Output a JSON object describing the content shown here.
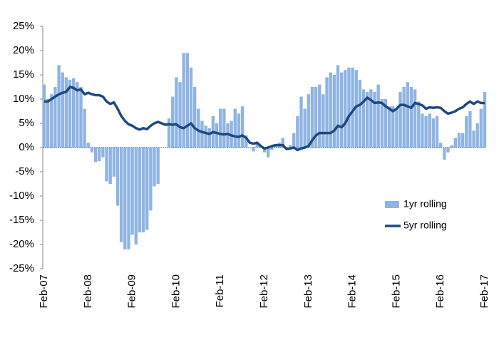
{
  "chart_data": {
    "type": "bar-line",
    "categories": [
      "Feb-07",
      null,
      null,
      null,
      null,
      null,
      null,
      null,
      null,
      null,
      null,
      null,
      "Feb-08",
      null,
      null,
      null,
      null,
      null,
      null,
      null,
      null,
      null,
      null,
      null,
      "Feb-09",
      null,
      null,
      null,
      null,
      null,
      null,
      null,
      null,
      null,
      null,
      null,
      "Feb-10",
      null,
      null,
      null,
      null,
      null,
      null,
      null,
      null,
      null,
      null,
      null,
      "Feb-11",
      null,
      null,
      null,
      null,
      null,
      null,
      null,
      null,
      null,
      null,
      null,
      "Feb-12",
      null,
      null,
      null,
      null,
      null,
      null,
      null,
      null,
      null,
      null,
      null,
      "Feb-13",
      null,
      null,
      null,
      null,
      null,
      null,
      null,
      null,
      null,
      null,
      null,
      "Feb-14",
      null,
      null,
      null,
      null,
      null,
      null,
      null,
      null,
      null,
      null,
      null,
      "Feb-15",
      null,
      null,
      null,
      null,
      null,
      null,
      null,
      null,
      null,
      null,
      null,
      "Feb-16",
      null,
      null,
      null,
      null,
      null,
      null,
      null,
      null,
      null,
      null,
      null,
      "Feb-17"
    ],
    "series": [
      {
        "name": "1yr rolling",
        "kind": "bar",
        "color": "#8fb4e3",
        "values": [
          13,
          10,
          11,
          12.5,
          17,
          15.5,
          14.5,
          14,
          14.3,
          13.5,
          12.5,
          8,
          1,
          -1,
          -3,
          -2.8,
          -2,
          -7,
          -7.5,
          -6,
          -12,
          -19.5,
          -21,
          -21,
          -18,
          -20,
          -17.5,
          -17.5,
          -17,
          -13,
          -8,
          -7.5,
          0,
          0,
          6,
          10.5,
          14.5,
          13.5,
          19.5,
          19.5,
          16.5,
          12.5,
          8,
          5.5,
          4.5,
          4,
          6.5,
          5,
          8,
          8,
          5,
          5.5,
          8,
          7,
          8.5,
          2.5,
          0,
          -0.8,
          1,
          0.5,
          -1,
          -2,
          -0.5,
          0.5,
          1,
          2,
          0,
          0.5,
          3,
          6.5,
          10.5,
          8,
          11,
          12.5,
          12.5,
          13,
          11,
          14.5,
          15.5,
          15,
          17,
          15.5,
          16,
          16.5,
          16.5,
          16,
          14,
          12,
          11.5,
          12,
          11.5,
          13,
          10,
          10,
          8.5,
          8.5,
          8,
          11.5,
          12.5,
          13.5,
          12.5,
          12,
          9.5,
          7,
          6.5,
          7,
          6,
          6.5,
          1,
          -2.5,
          -1,
          0.5,
          2,
          3,
          3,
          6.5,
          7.5,
          3.5,
          5,
          8,
          11.5
        ]
      },
      {
        "name": "5yr rolling",
        "kind": "line",
        "color": "#1f497d",
        "values": [
          9.5,
          9.5,
          10,
          10.5,
          11,
          11.3,
          11.5,
          12.5,
          12.3,
          11.8,
          12,
          11,
          11.3,
          11,
          10.8,
          10.8,
          10.5,
          9.5,
          9,
          9.3,
          8,
          6.5,
          5.5,
          4.8,
          4.5,
          4,
          3.7,
          4,
          3.8,
          4.5,
          5,
          5.3,
          5,
          4.7,
          4.8,
          4.7,
          4.8,
          4.2,
          4,
          4.5,
          5,
          4,
          3.5,
          3.2,
          3,
          2.8,
          3.2,
          3,
          2.8,
          2.7,
          2.8,
          2.5,
          2.3,
          2.2,
          2.5,
          2,
          1,
          0.8,
          1,
          0.3,
          -0.2,
          0,
          0.3,
          0.5,
          0.5,
          0.5,
          -0.3,
          -0.2,
          0,
          -0.5,
          -0.2,
          0,
          0.3,
          1.5,
          2.5,
          3,
          3,
          3,
          3,
          3.5,
          4.5,
          4.2,
          5,
          6.5,
          7.5,
          8.5,
          8.8,
          9.5,
          10.3,
          9.8,
          9.2,
          9.3,
          9.2,
          8.5,
          8,
          7.5,
          8,
          8.8,
          8.8,
          8.5,
          8.2,
          9.2,
          9,
          8.7,
          8,
          8.3,
          8.2,
          8.3,
          8.2,
          7.5,
          7,
          7.2,
          7.5,
          8,
          8.3,
          9,
          9.5,
          9,
          9.5,
          9.2,
          9.2
        ]
      }
    ],
    "ylim": [
      -25,
      25
    ],
    "yticks": [
      {
        "value": -25,
        "label": "-25%"
      },
      {
        "value": -20,
        "label": "-20%"
      },
      {
        "value": -15,
        "label": "-15%"
      },
      {
        "value": -10,
        "label": "-10%"
      },
      {
        "value": -5,
        "label": "-5%"
      },
      {
        "value": 0,
        "label": "0%"
      },
      {
        "value": 5,
        "label": "5%"
      },
      {
        "value": 10,
        "label": "10%"
      },
      {
        "value": 15,
        "label": "15%"
      },
      {
        "value": 20,
        "label": "20%"
      },
      {
        "value": 25,
        "label": "25%"
      }
    ],
    "grid": false,
    "legend": "right"
  }
}
